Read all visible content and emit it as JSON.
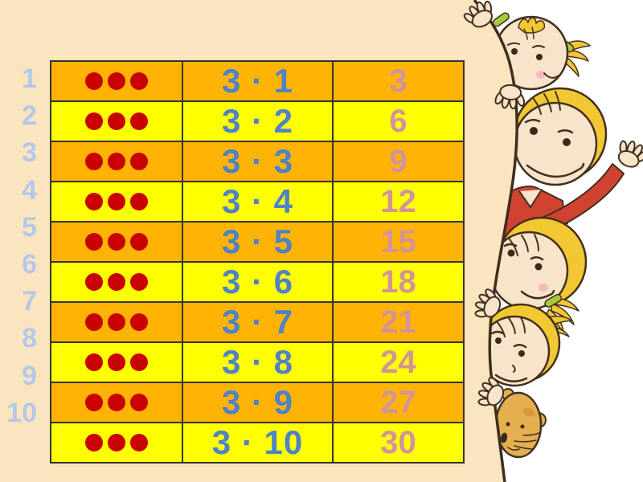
{
  "slide": {
    "kind": "multiplication-table-slide",
    "multiplier": 3,
    "dots_per_row": 3
  },
  "table": {
    "rows": [
      {
        "index": "1",
        "expression": "3 · 1",
        "result": "3"
      },
      {
        "index": "2",
        "expression": "3 · 2",
        "result": "6"
      },
      {
        "index": "3",
        "expression": "3 · 3",
        "result": "9"
      },
      {
        "index": "4",
        "expression": "3 · 4",
        "result": "12"
      },
      {
        "index": "5",
        "expression": "3 · 5",
        "result": "15"
      },
      {
        "index": "6",
        "expression": "3 · 6",
        "result": "18"
      },
      {
        "index": "7",
        "expression": "3 · 7",
        "result": "21"
      },
      {
        "index": "8",
        "expression": "3 · 8",
        "result": "24"
      },
      {
        "index": "9",
        "expression": "3 · 9",
        "result": "27"
      },
      {
        "index": "10",
        "expression": "3 · 10",
        "result": "30"
      }
    ]
  },
  "colors": {
    "cream": "#FBE5BE",
    "white": "#FFFFFF",
    "orange": "#FFB304",
    "yellow": "#FFFF00",
    "grid_line": "#333333",
    "blue": "#5083C6",
    "pink": "#D29499",
    "light_blue": "#B4C7EB",
    "dot_red": "#C80000",
    "outline_brown": "#42301E",
    "skin": "#F8E4CA",
    "hair_yellow": "#F1C832",
    "clip_green": "#A6C93C",
    "shirt_red": "#D04330",
    "bear_body": "#E5AF4F",
    "bear_inner": "#C8912F",
    "blush_pink": "#F4B9BF"
  },
  "scene": {
    "characters": [
      {
        "name": "baby-with-pigtails"
      },
      {
        "name": "waving-child"
      },
      {
        "name": "girl-with-ponytail"
      },
      {
        "name": "blonde-child"
      },
      {
        "name": "teddy-bear"
      }
    ]
  }
}
